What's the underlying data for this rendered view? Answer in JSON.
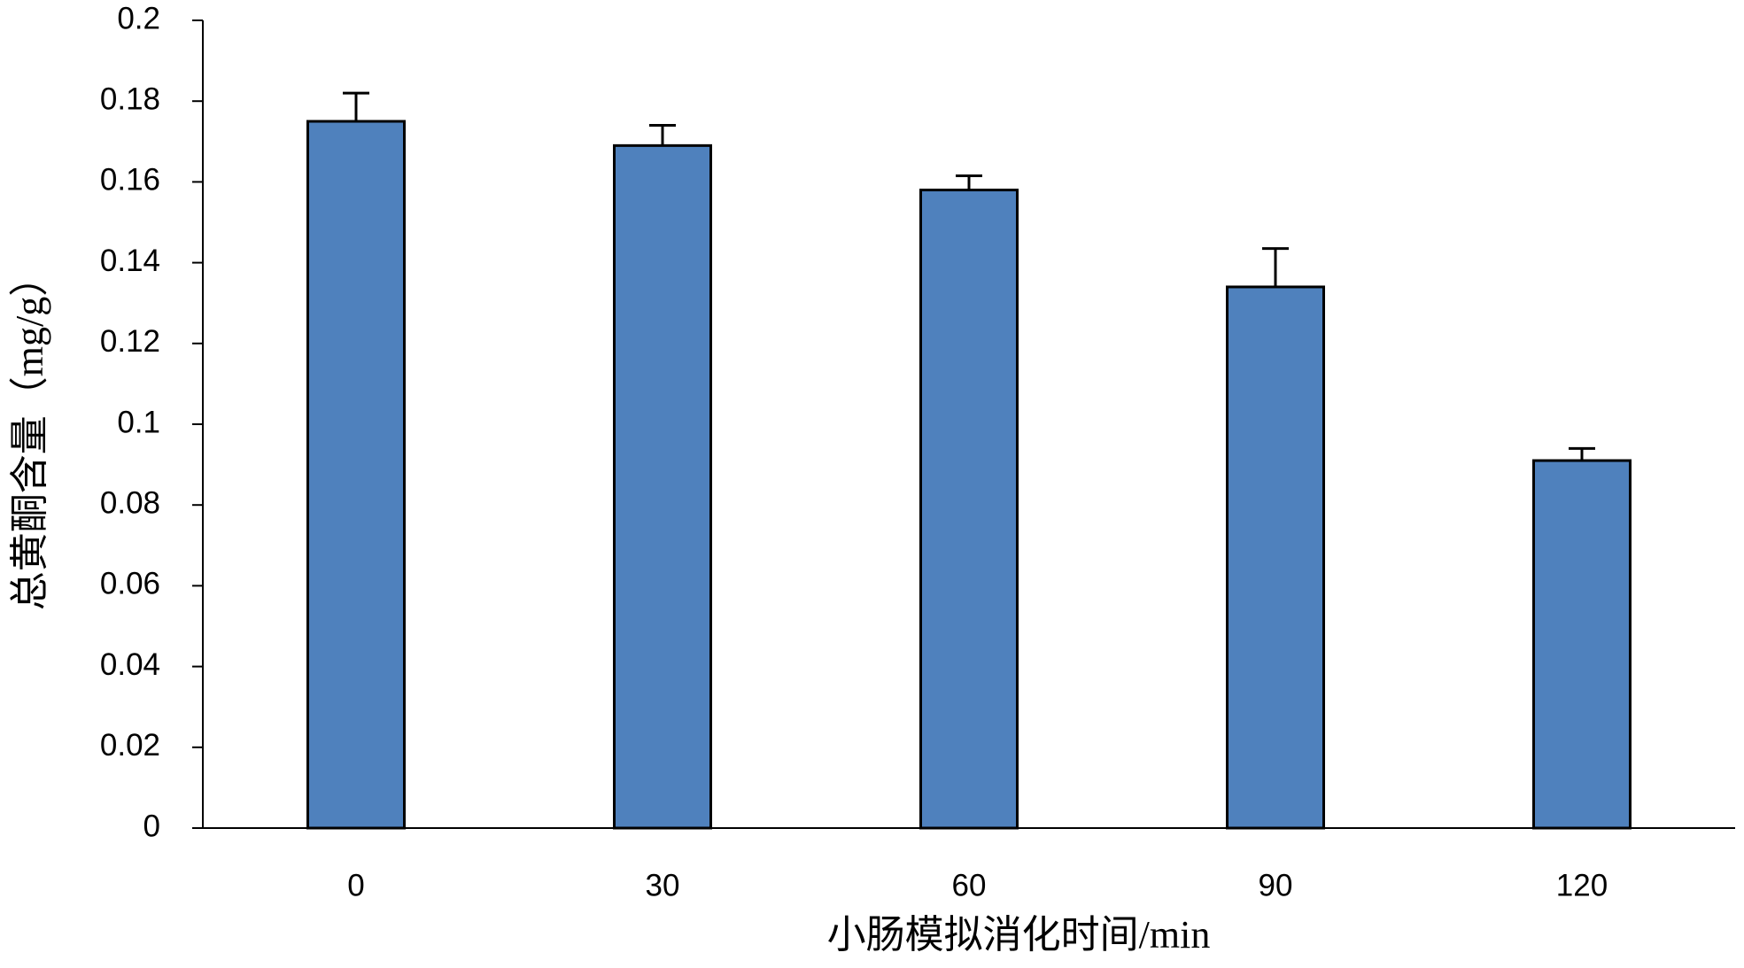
{
  "chart_data": {
    "type": "bar",
    "x_label": "小肠模拟消化时间/min",
    "y_label": "总黄酮含量（mg/g）",
    "categories": [
      "0",
      "30",
      "60",
      "90",
      "120"
    ],
    "values": [
      0.175,
      0.169,
      0.158,
      0.134,
      0.091
    ],
    "errors": [
      0.007,
      0.005,
      0.0035,
      0.0095,
      0.003
    ],
    "color": "#4f81bd",
    "ylim": [
      0,
      0.2
    ],
    "yticks": [
      0,
      0.02,
      0.04,
      0.06,
      0.08,
      0.1,
      0.12,
      0.14,
      0.16,
      0.18,
      0.2
    ],
    "grid": false
  }
}
